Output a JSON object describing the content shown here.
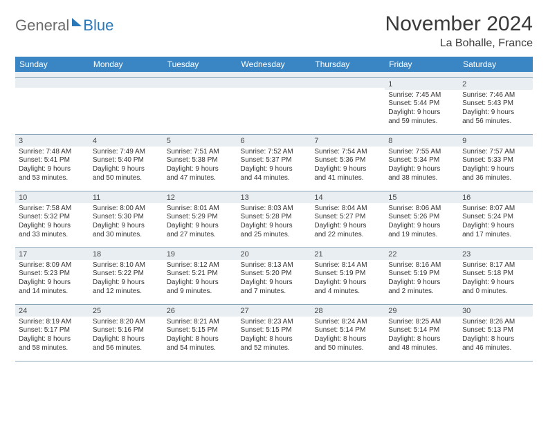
{
  "brand": {
    "part1": "General",
    "part2": "Blue"
  },
  "title": "November 2024",
  "location": "La Bohalle, France",
  "colors": {
    "header_bg": "#3a86c4",
    "header_text": "#ffffff",
    "daynum_bg": "#e9eef2",
    "rule": "#8aa4b8",
    "body_text": "#333333",
    "title_text": "#3a3a3a",
    "brand_gray": "#6b6b6b",
    "brand_blue": "#2a78b8"
  },
  "typography": {
    "title_fontsize": 30,
    "location_fontsize": 16,
    "dayhead_fontsize": 12,
    "cell_fontsize": 10
  },
  "day_headers": [
    "Sunday",
    "Monday",
    "Tuesday",
    "Wednesday",
    "Thursday",
    "Friday",
    "Saturday"
  ],
  "weeks": [
    [
      {
        "n": "",
        "sr": "",
        "ss": "",
        "dl1": "",
        "dl2": ""
      },
      {
        "n": "",
        "sr": "",
        "ss": "",
        "dl1": "",
        "dl2": ""
      },
      {
        "n": "",
        "sr": "",
        "ss": "",
        "dl1": "",
        "dl2": ""
      },
      {
        "n": "",
        "sr": "",
        "ss": "",
        "dl1": "",
        "dl2": ""
      },
      {
        "n": "",
        "sr": "",
        "ss": "",
        "dl1": "",
        "dl2": ""
      },
      {
        "n": "1",
        "sr": "Sunrise: 7:45 AM",
        "ss": "Sunset: 5:44 PM",
        "dl1": "Daylight: 9 hours",
        "dl2": "and 59 minutes."
      },
      {
        "n": "2",
        "sr": "Sunrise: 7:46 AM",
        "ss": "Sunset: 5:43 PM",
        "dl1": "Daylight: 9 hours",
        "dl2": "and 56 minutes."
      }
    ],
    [
      {
        "n": "3",
        "sr": "Sunrise: 7:48 AM",
        "ss": "Sunset: 5:41 PM",
        "dl1": "Daylight: 9 hours",
        "dl2": "and 53 minutes."
      },
      {
        "n": "4",
        "sr": "Sunrise: 7:49 AM",
        "ss": "Sunset: 5:40 PM",
        "dl1": "Daylight: 9 hours",
        "dl2": "and 50 minutes."
      },
      {
        "n": "5",
        "sr": "Sunrise: 7:51 AM",
        "ss": "Sunset: 5:38 PM",
        "dl1": "Daylight: 9 hours",
        "dl2": "and 47 minutes."
      },
      {
        "n": "6",
        "sr": "Sunrise: 7:52 AM",
        "ss": "Sunset: 5:37 PM",
        "dl1": "Daylight: 9 hours",
        "dl2": "and 44 minutes."
      },
      {
        "n": "7",
        "sr": "Sunrise: 7:54 AM",
        "ss": "Sunset: 5:36 PM",
        "dl1": "Daylight: 9 hours",
        "dl2": "and 41 minutes."
      },
      {
        "n": "8",
        "sr": "Sunrise: 7:55 AM",
        "ss": "Sunset: 5:34 PM",
        "dl1": "Daylight: 9 hours",
        "dl2": "and 38 minutes."
      },
      {
        "n": "9",
        "sr": "Sunrise: 7:57 AM",
        "ss": "Sunset: 5:33 PM",
        "dl1": "Daylight: 9 hours",
        "dl2": "and 36 minutes."
      }
    ],
    [
      {
        "n": "10",
        "sr": "Sunrise: 7:58 AM",
        "ss": "Sunset: 5:32 PM",
        "dl1": "Daylight: 9 hours",
        "dl2": "and 33 minutes."
      },
      {
        "n": "11",
        "sr": "Sunrise: 8:00 AM",
        "ss": "Sunset: 5:30 PM",
        "dl1": "Daylight: 9 hours",
        "dl2": "and 30 minutes."
      },
      {
        "n": "12",
        "sr": "Sunrise: 8:01 AM",
        "ss": "Sunset: 5:29 PM",
        "dl1": "Daylight: 9 hours",
        "dl2": "and 27 minutes."
      },
      {
        "n": "13",
        "sr": "Sunrise: 8:03 AM",
        "ss": "Sunset: 5:28 PM",
        "dl1": "Daylight: 9 hours",
        "dl2": "and 25 minutes."
      },
      {
        "n": "14",
        "sr": "Sunrise: 8:04 AM",
        "ss": "Sunset: 5:27 PM",
        "dl1": "Daylight: 9 hours",
        "dl2": "and 22 minutes."
      },
      {
        "n": "15",
        "sr": "Sunrise: 8:06 AM",
        "ss": "Sunset: 5:26 PM",
        "dl1": "Daylight: 9 hours",
        "dl2": "and 19 minutes."
      },
      {
        "n": "16",
        "sr": "Sunrise: 8:07 AM",
        "ss": "Sunset: 5:24 PM",
        "dl1": "Daylight: 9 hours",
        "dl2": "and 17 minutes."
      }
    ],
    [
      {
        "n": "17",
        "sr": "Sunrise: 8:09 AM",
        "ss": "Sunset: 5:23 PM",
        "dl1": "Daylight: 9 hours",
        "dl2": "and 14 minutes."
      },
      {
        "n": "18",
        "sr": "Sunrise: 8:10 AM",
        "ss": "Sunset: 5:22 PM",
        "dl1": "Daylight: 9 hours",
        "dl2": "and 12 minutes."
      },
      {
        "n": "19",
        "sr": "Sunrise: 8:12 AM",
        "ss": "Sunset: 5:21 PM",
        "dl1": "Daylight: 9 hours",
        "dl2": "and 9 minutes."
      },
      {
        "n": "20",
        "sr": "Sunrise: 8:13 AM",
        "ss": "Sunset: 5:20 PM",
        "dl1": "Daylight: 9 hours",
        "dl2": "and 7 minutes."
      },
      {
        "n": "21",
        "sr": "Sunrise: 8:14 AM",
        "ss": "Sunset: 5:19 PM",
        "dl1": "Daylight: 9 hours",
        "dl2": "and 4 minutes."
      },
      {
        "n": "22",
        "sr": "Sunrise: 8:16 AM",
        "ss": "Sunset: 5:19 PM",
        "dl1": "Daylight: 9 hours",
        "dl2": "and 2 minutes."
      },
      {
        "n": "23",
        "sr": "Sunrise: 8:17 AM",
        "ss": "Sunset: 5:18 PM",
        "dl1": "Daylight: 9 hours",
        "dl2": "and 0 minutes."
      }
    ],
    [
      {
        "n": "24",
        "sr": "Sunrise: 8:19 AM",
        "ss": "Sunset: 5:17 PM",
        "dl1": "Daylight: 8 hours",
        "dl2": "and 58 minutes."
      },
      {
        "n": "25",
        "sr": "Sunrise: 8:20 AM",
        "ss": "Sunset: 5:16 PM",
        "dl1": "Daylight: 8 hours",
        "dl2": "and 56 minutes."
      },
      {
        "n": "26",
        "sr": "Sunrise: 8:21 AM",
        "ss": "Sunset: 5:15 PM",
        "dl1": "Daylight: 8 hours",
        "dl2": "and 54 minutes."
      },
      {
        "n": "27",
        "sr": "Sunrise: 8:23 AM",
        "ss": "Sunset: 5:15 PM",
        "dl1": "Daylight: 8 hours",
        "dl2": "and 52 minutes."
      },
      {
        "n": "28",
        "sr": "Sunrise: 8:24 AM",
        "ss": "Sunset: 5:14 PM",
        "dl1": "Daylight: 8 hours",
        "dl2": "and 50 minutes."
      },
      {
        "n": "29",
        "sr": "Sunrise: 8:25 AM",
        "ss": "Sunset: 5:14 PM",
        "dl1": "Daylight: 8 hours",
        "dl2": "and 48 minutes."
      },
      {
        "n": "30",
        "sr": "Sunrise: 8:26 AM",
        "ss": "Sunset: 5:13 PM",
        "dl1": "Daylight: 8 hours",
        "dl2": "and 46 minutes."
      }
    ]
  ]
}
